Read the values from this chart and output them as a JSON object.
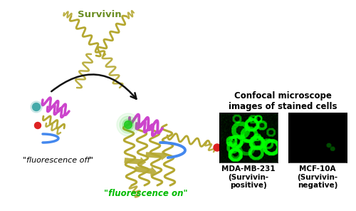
{
  "background_color": "#ffffff",
  "survivin_label": "Survivin",
  "survivin_label_color": "#6b8e23",
  "survivin_label_fontsize": 9.5,
  "fluorescence_off_label": "\"fluorescence off\"",
  "fluorescence_off_color": "#000000",
  "fluorescence_off_fontsize": 8,
  "fluorescence_on_label": "\"fluorescence on\"",
  "fluorescence_on_color": "#00bb00",
  "fluorescence_on_fontsize": 8.5,
  "confocal_title": "Confocal microscope\nimages of stained cells",
  "confocal_title_fontsize": 8.5,
  "mda_label": "MDA-MB-231\n(Survivin-\npositive)",
  "mda_label_fontsize": 7.5,
  "mcf_label": "MCF-10A\n(Survivin-\nnegative)",
  "mcf_label_fontsize": 7.5,
  "protein_color": "#b5a832",
  "peptide_purple_color": "#cc44cc",
  "peptide_blue_color": "#4488ee",
  "dot_red_color": "#dd2222",
  "dot_green_color": "#22cc22",
  "dot_teal_color": "#44aaaa",
  "arrow_color": "#111111",
  "fig_width": 5.0,
  "fig_height": 2.96,
  "dpi": 100
}
